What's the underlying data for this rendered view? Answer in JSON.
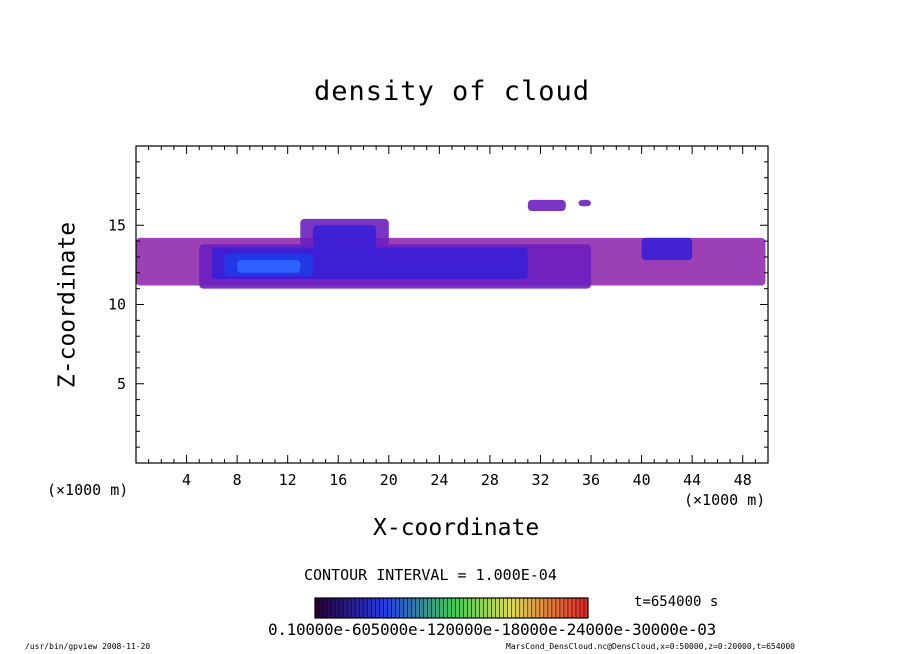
{
  "chart_data": {
    "type": "heatmap",
    "title": "density of cloud",
    "xlabel": "X-coordinate",
    "ylabel": "Z-coordinate",
    "x_unit_left": "(×1000 m)",
    "x_unit_right": "(×1000 m)",
    "xlim": [
      0,
      50
    ],
    "ylim": [
      0,
      20
    ],
    "x_ticks": [
      4,
      8,
      12,
      16,
      20,
      24,
      28,
      32,
      36,
      40,
      44,
      48
    ],
    "y_ticks": [
      5,
      10,
      15
    ],
    "contour_interval": "CONTOUR INTERVAL = 1.000E-04",
    "time": "t=654000 s",
    "colorbar_labels": "0.10000e-605000e-120000e-18000e-24000e-30000e-03",
    "colors": {
      "faint": "#8a1ea8",
      "low": "#6d1fbf",
      "mid": "#3a1fd6",
      "high": "#1f3be8",
      "peak": "#2f66ff"
    },
    "cloud_regions": [
      {
        "level": "faint",
        "x": [
          0,
          49.8
        ],
        "z": [
          11.2,
          14.2
        ]
      },
      {
        "level": "low",
        "x": [
          5,
          36
        ],
        "z": [
          11.0,
          13.8
        ]
      },
      {
        "level": "low",
        "x": [
          13,
          20
        ],
        "z": [
          13.5,
          15.4
        ]
      },
      {
        "level": "low",
        "x": [
          31,
          34
        ],
        "z": [
          15.9,
          16.6
        ]
      },
      {
        "level": "low",
        "x": [
          35,
          36
        ],
        "z": [
          16.2,
          16.6
        ]
      },
      {
        "level": "mid",
        "x": [
          6,
          31
        ],
        "z": [
          11.6,
          13.6
        ]
      },
      {
        "level": "mid",
        "x": [
          14,
          19
        ],
        "z": [
          13.5,
          15.0
        ]
      },
      {
        "level": "high",
        "x": [
          7,
          14
        ],
        "z": [
          11.8,
          13.2
        ]
      },
      {
        "level": "peak",
        "x": [
          8,
          13
        ],
        "z": [
          12.0,
          12.8
        ]
      },
      {
        "level": "mid",
        "x": [
          40,
          44
        ],
        "z": [
          12.8,
          14.2
        ]
      }
    ]
  },
  "footer": {
    "left": "/usr/bin/gpview   2008-11-20",
    "right": "MarsCond_DensCloud.nc@DensCloud,x=0:50000,z=0:20000,t=654000"
  }
}
